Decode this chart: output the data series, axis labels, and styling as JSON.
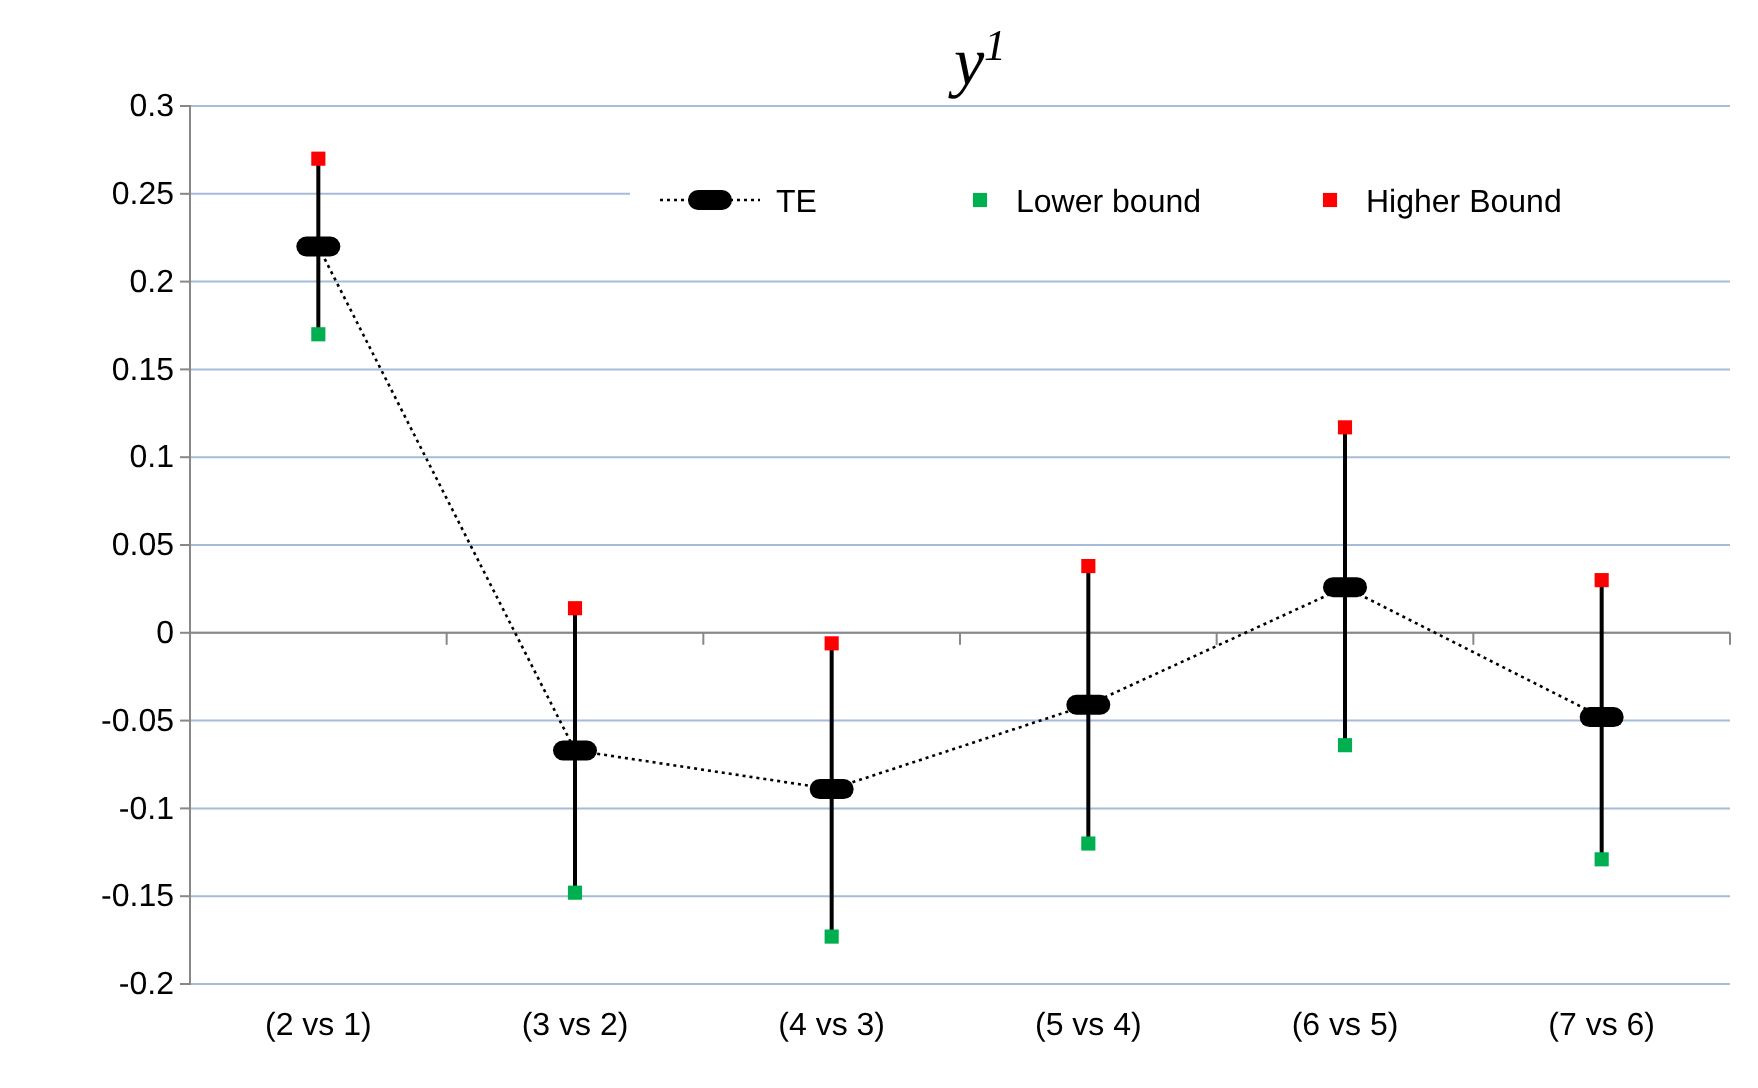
{
  "chart_data": {
    "type": "line",
    "title": "y$^{1}$",
    "categories": [
      "(2 vs 1)",
      "(3 vs 2)",
      "(4 vs 3)",
      "(5 vs 4)",
      "(6 vs 5)",
      "(7 vs 6)"
    ],
    "series": [
      {
        "name": "TE",
        "type": "line",
        "color": "#000000",
        "line_style": "dotted",
        "marker": "square",
        "values": [
          0.22,
          -0.067,
          -0.089,
          -0.041,
          0.026,
          -0.048
        ],
        "errors": [
          [
            0.05,
            0.05
          ],
          [
            0.08,
            0.08
          ],
          [
            0.085,
            0.085
          ],
          [
            0.08,
            0.08
          ],
          [
            0.09,
            0.09
          ],
          [
            0.08,
            0.08
          ]
        ]
      },
      {
        "name": "Lower bound",
        "type": "scatter",
        "color": "#00b050",
        "marker": "square",
        "values": [
          0.17,
          -0.148,
          -0.173,
          -0.12,
          -0.064,
          -0.129
        ]
      },
      {
        "name": "Higher Bound",
        "type": "scatter",
        "color": "#ff0000",
        "marker": "square",
        "values": [
          0.27,
          0.014,
          -0.006,
          0.038,
          0.117,
          0.03
        ]
      }
    ],
    "ylim": [
      -0.2,
      0.3
    ],
    "yticks": [
      -0.2,
      -0.15,
      -0.1,
      -0.05,
      0,
      0.05,
      0.1,
      0.15,
      0.2,
      0.25,
      0.3
    ],
    "grid": "y",
    "legend": "top right"
  }
}
